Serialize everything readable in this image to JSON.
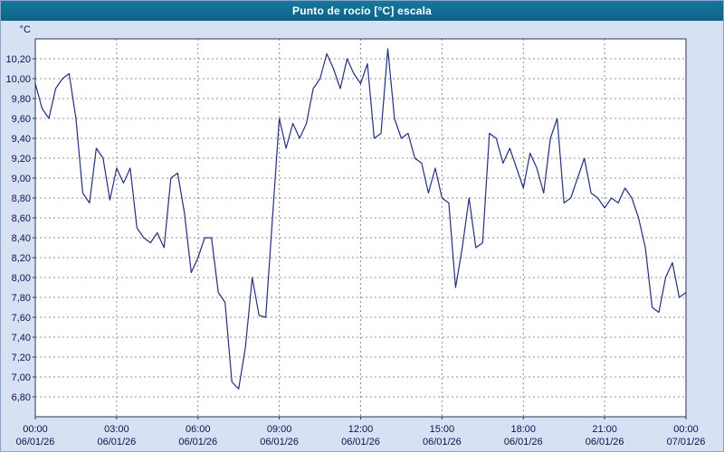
{
  "window": {
    "title": "Punto de rocío [°C] escala"
  },
  "chart_data": {
    "type": "line",
    "title": "Punto de rocío [°C] escala",
    "xlabel": "",
    "ylabel": "°C",
    "xlim": [
      0,
      24
    ],
    "ylim": [
      6.6,
      10.4
    ],
    "grid": true,
    "legend": "none",
    "colors": {
      "plot_bg": "#ffffff",
      "grid": "#8f8f8f",
      "axis": "#30305a",
      "text": "#10104f",
      "window_bg": "#d6e2f4",
      "titlebar": "#0e6a8e",
      "line": "#23307f"
    },
    "y_ticks": [
      6.8,
      7.0,
      7.2,
      7.4,
      7.6,
      7.8,
      8.0,
      8.2,
      8.4,
      8.6,
      8.8,
      9.0,
      9.2,
      9.4,
      9.6,
      9.8,
      10.0,
      10.2
    ],
    "y_tick_labels": [
      "6,80",
      "7,00",
      "7,20",
      "7,40",
      "7,60",
      "7,80",
      "8,00",
      "8,20",
      "8,40",
      "8,60",
      "8,80",
      "9,00",
      "9,20",
      "9,40",
      "9,60",
      "9,80",
      "10,00",
      "10,20"
    ],
    "x_ticks": [
      {
        "hour": 0,
        "time": "00:00",
        "date": "06/01/26"
      },
      {
        "hour": 3,
        "time": "03:00",
        "date": "06/01/26"
      },
      {
        "hour": 6,
        "time": "06:00",
        "date": "06/01/26"
      },
      {
        "hour": 9,
        "time": "09:00",
        "date": "06/01/26"
      },
      {
        "hour": 12,
        "time": "12:00",
        "date": "06/01/26"
      },
      {
        "hour": 15,
        "time": "15:00",
        "date": "06/01/26"
      },
      {
        "hour": 18,
        "time": "18:00",
        "date": "06/01/26"
      },
      {
        "hour": 21,
        "time": "21:00",
        "date": "06/01/26"
      },
      {
        "hour": 24,
        "time": "00:00",
        "date": "07/01/26"
      }
    ],
    "series": [
      {
        "name": "Punto de rocío",
        "color": "#23307f",
        "x": [
          0,
          0.25,
          0.5,
          0.75,
          1,
          1.25,
          1.5,
          1.75,
          2,
          2.25,
          2.5,
          2.75,
          3,
          3.25,
          3.5,
          3.75,
          4,
          4.25,
          4.5,
          4.75,
          5,
          5.25,
          5.5,
          5.75,
          6,
          6.25,
          6.5,
          6.75,
          7,
          7.25,
          7.5,
          7.75,
          8,
          8.25,
          8.5,
          8.75,
          9,
          9.25,
          9.5,
          9.75,
          10,
          10.25,
          10.5,
          10.75,
          11,
          11.25,
          11.5,
          11.75,
          12,
          12.25,
          12.5,
          12.75,
          13,
          13.25,
          13.5,
          13.75,
          14,
          14.25,
          14.5,
          14.75,
          15,
          15.25,
          15.5,
          15.75,
          16,
          16.25,
          16.5,
          16.75,
          17,
          17.25,
          17.5,
          17.75,
          18,
          18.25,
          18.5,
          18.75,
          19,
          19.25,
          19.5,
          19.75,
          20,
          20.25,
          20.5,
          20.75,
          21,
          21.25,
          21.5,
          21.75,
          22,
          22.25,
          22.5,
          22.75,
          23,
          23.25,
          23.5,
          23.75,
          24
        ],
        "values": [
          9.95,
          9.7,
          9.6,
          9.9,
          10,
          10.05,
          9.6,
          8.85,
          8.75,
          9.3,
          9.2,
          8.78,
          9.1,
          8.95,
          9.1,
          8.5,
          8.4,
          8.35,
          8.45,
          8.3,
          9,
          9.05,
          8.65,
          8.05,
          8.2,
          8.4,
          8.4,
          7.85,
          7.75,
          6.95,
          6.88,
          7.3,
          8,
          7.62,
          7.6,
          8.6,
          9.6,
          9.3,
          9.55,
          9.4,
          9.55,
          9.9,
          10,
          10.25,
          10.1,
          9.9,
          10.2,
          10.05,
          9.95,
          10.15,
          9.4,
          9.45,
          10.3,
          9.6,
          9.4,
          9.45,
          9.2,
          9.15,
          8.85,
          9.1,
          8.8,
          8.75,
          7.9,
          8.3,
          8.8,
          8.3,
          8.35,
          9.45,
          9.4,
          9.15,
          9.3,
          9.1,
          8.9,
          9.25,
          9.1,
          8.85,
          9.4,
          9.6,
          8.75,
          8.8,
          9,
          9.2,
          8.85,
          8.8,
          8.7,
          8.8,
          8.75,
          8.9,
          8.8,
          8.6,
          8.3,
          7.7,
          7.65,
          8,
          8.15,
          7.8,
          7.85
        ]
      }
    ]
  }
}
